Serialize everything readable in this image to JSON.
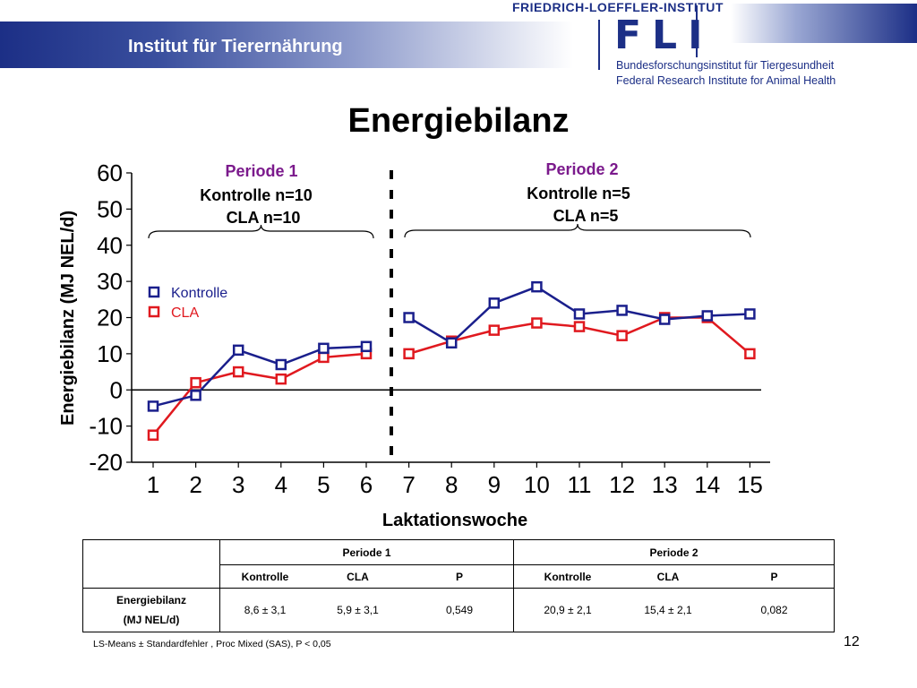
{
  "header": {
    "institute": "Institut für Tierernährung",
    "fli_top": "FRIEDRICH-LOEFFLER-INSTITUT",
    "fli_logo": "FLI",
    "fli_name_de": "Bundesforschungsinstitut für Tiergesundheit",
    "fli_name_en": "Federal Research Institute for Animal Health",
    "brand_color": "#1c2f86"
  },
  "chart_data": {
    "type": "line",
    "title": "Energiebilanz",
    "xlabel": "Laktationswoche",
    "ylabel": "Energiebilanz (MJ NEL/d)",
    "x": [
      1,
      2,
      3,
      4,
      5,
      6,
      7,
      8,
      9,
      10,
      11,
      12,
      13,
      14,
      15
    ],
    "ylim": [
      -20,
      60
    ],
    "yticks": [
      -20,
      -10,
      0,
      10,
      20,
      30,
      40,
      50,
      60
    ],
    "series": [
      {
        "name": "Kontrolle",
        "color": "#1a1f8c",
        "values": [
          -4.5,
          -1.5,
          11,
          7,
          11.5,
          12,
          20,
          13,
          24,
          28.5,
          21,
          22,
          19.5,
          20.5,
          21
        ]
      },
      {
        "name": "CLA",
        "color": "#e0191f",
        "values": [
          -12.5,
          2,
          5,
          3,
          9,
          10,
          10,
          13.5,
          16.5,
          18.5,
          17.5,
          15,
          20,
          20,
          10
        ]
      }
    ],
    "segment_break_after": 6,
    "legend_position": "left-middle",
    "grid": false,
    "periods": [
      {
        "label": "Periode 1",
        "kontrolle": "Kontrolle n=10",
        "cla": "CLA n=10",
        "from": 1,
        "to": 6
      },
      {
        "label": "Periode 2",
        "kontrolle": "Kontrolle n=5",
        "cla": "CLA n=5",
        "from": 7,
        "to": 15
      }
    ],
    "period_color": "#7b1a8c"
  },
  "table": {
    "period1": "Periode 1",
    "period2": "Periode 2",
    "cols": [
      "Kontrolle",
      "CLA",
      "P",
      "Kontrolle",
      "CLA",
      "P"
    ],
    "row_label_1": "Energiebilanz",
    "row_label_2": "(MJ NEL/d)",
    "values": [
      "8,6 ± 3,1",
      "5,9 ± 3,1",
      "0,549",
      "20,9 ± 2,1",
      "15,4 ± 2,1",
      "0,082"
    ]
  },
  "footnote": "LS-Means ± Standardfehler , Proc Mixed  (SAS),  P < 0,05",
  "page_number": "12"
}
